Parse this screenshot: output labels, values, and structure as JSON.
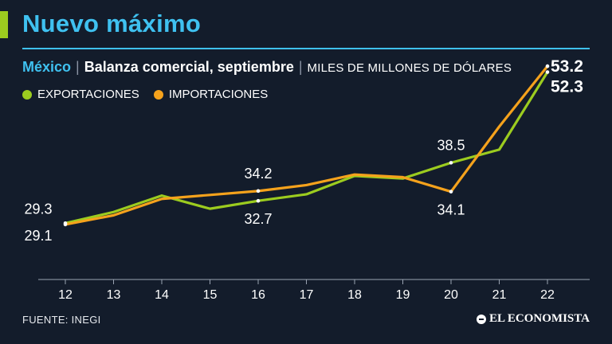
{
  "colors": {
    "background": "#131c2b",
    "title": "#3fc1f0",
    "accent_bar": "#9ccc1f",
    "rule": "#3fc1f0",
    "exportaciones": "#9ccc1f",
    "importaciones": "#f5a21c",
    "axis": "#9aa3b2"
  },
  "header": {
    "title": "Nuevo máximo",
    "country": "México",
    "subject": "Balanza comercial, septiembre",
    "unit": "MILES DE MILLONES DE DÓLARES",
    "separator": "|"
  },
  "legend": {
    "items": [
      {
        "label": "EXPORTACIONES"
      },
      {
        "label": "IMPORTACIONES"
      }
    ]
  },
  "chart_data": {
    "type": "line",
    "title": "Nuevo máximo",
    "subtitle": "México | Balanza comercial, septiembre | MILES DE MILLONES DE DÓLARES",
    "xlabel": "",
    "ylabel": "",
    "categories": [
      "12",
      "13",
      "14",
      "15",
      "16",
      "17",
      "18",
      "19",
      "20",
      "21",
      "22"
    ],
    "series": [
      {
        "name": "EXPORTACIONES",
        "values": [
          29.3,
          31.0,
          33.5,
          31.5,
          32.7,
          33.7,
          36.5,
          36.1,
          38.5,
          40.5,
          52.3
        ]
      },
      {
        "name": "IMPORTACIONES",
        "values": [
          29.1,
          30.5,
          33.0,
          33.6,
          34.2,
          35.1,
          36.7,
          36.3,
          34.1,
          44.0,
          53.2
        ]
      }
    ],
    "data_labels": [
      {
        "series": 0,
        "index": 0,
        "text": "29.3",
        "position": "above"
      },
      {
        "series": 1,
        "index": 0,
        "text": "29.1",
        "position": "below"
      },
      {
        "series": 1,
        "index": 4,
        "text": "34.2",
        "position": "above"
      },
      {
        "series": 0,
        "index": 4,
        "text": "32.7",
        "position": "below"
      },
      {
        "series": 0,
        "index": 8,
        "text": "38.5",
        "position": "above"
      },
      {
        "series": 1,
        "index": 8,
        "text": "34.1",
        "position": "below"
      },
      {
        "series": 1,
        "index": 10,
        "text": "53.2",
        "position": "right-bold"
      },
      {
        "series": 0,
        "index": 10,
        "text": "52.3",
        "position": "right-bold-below"
      }
    ],
    "ylim": [
      24,
      56
    ],
    "grid": false
  },
  "footer": {
    "source": "FUENTE: INEGI",
    "brand": "EL ECONOMISTA"
  }
}
